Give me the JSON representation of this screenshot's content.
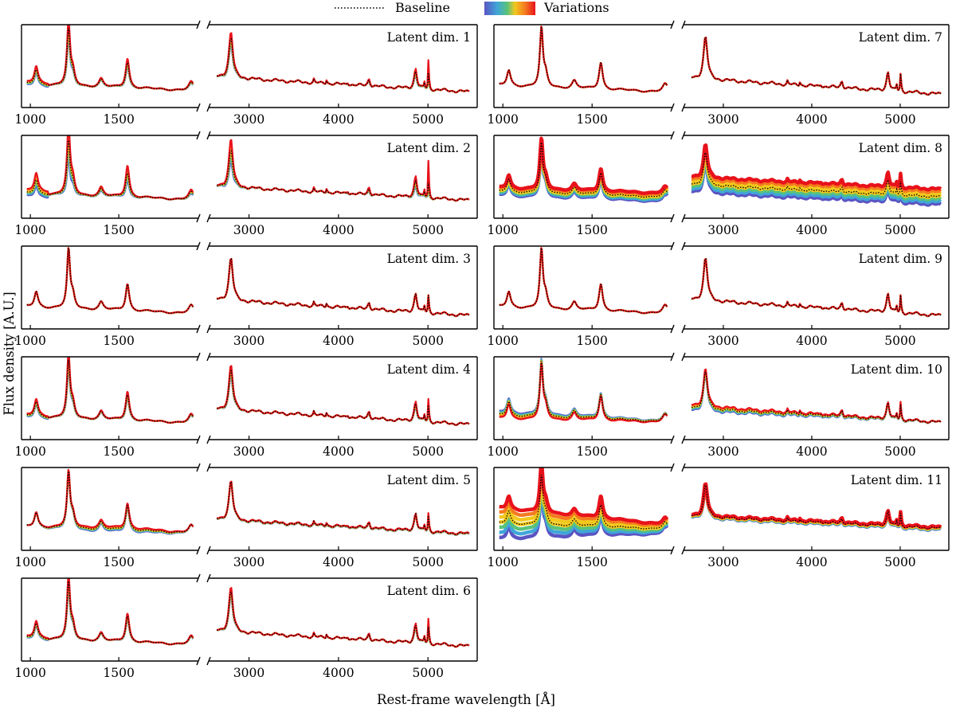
{
  "chart_data": {
    "type": "line",
    "xlabel": "Rest-frame wavelength [Å]",
    "ylabel": "Flux density [A.U.]",
    "legend": {
      "placement": "top-center",
      "entries": [
        {
          "label": "Baseline",
          "style": "dotted-black"
        },
        {
          "label": "Variations",
          "style": "rainbow-band"
        }
      ]
    },
    "colors": {
      "baseline": "#000000",
      "variation_low": "#5b54c2",
      "variation_mid": "#f2c81d",
      "variation_high": "#e8121b",
      "axes": "#000000"
    },
    "broken_x_axis": true,
    "uv_axis": {
      "xlim": [
        950,
        1950
      ],
      "ticks": [
        1000,
        1500
      ]
    },
    "optical_axis": {
      "xlim": [
        2550,
        5550
      ],
      "ticks": [
        3000,
        4000,
        5000
      ]
    },
    "emission_lines": [
      {
        "center": 1033,
        "width": 12,
        "height": 0.45
      },
      {
        "center": 1216,
        "width": 10,
        "height": 1.7
      },
      {
        "center": 1240,
        "width": 12,
        "height": 0.35
      },
      {
        "center": 1400,
        "width": 14,
        "height": 0.22
      },
      {
        "center": 1549,
        "width": 12,
        "height": 0.8
      },
      {
        "center": 1909,
        "width": 16,
        "height": 0.22
      },
      {
        "center": 2798,
        "width": 25,
        "height": 0.85
      },
      {
        "center": 3727,
        "width": 5,
        "height": 0.08
      },
      {
        "center": 3869,
        "width": 6,
        "height": 0.1
      },
      {
        "center": 4102,
        "width": 12,
        "height": 0.05
      },
      {
        "center": 4340,
        "width": 14,
        "height": 0.14
      },
      {
        "center": 4861,
        "width": 18,
        "height": 0.38
      },
      {
        "center": 4959,
        "width": 5,
        "height": 0.14
      },
      {
        "center": 5007,
        "width": 5,
        "height": 0.42
      }
    ],
    "panels": [
      {
        "label": "Latent dim. 1",
        "variation": 0.15,
        "mode": "lines-moderate",
        "oiii_boost": 0.5
      },
      {
        "label": "Latent dim. 2",
        "variation": 0.3,
        "mode": "lines-strong",
        "oiii_boost": 0.9
      },
      {
        "label": "Latent dim. 3",
        "variation": 0.02,
        "mode": "none",
        "oiii_boost": 0
      },
      {
        "label": "Latent dim. 4",
        "variation": 0.12,
        "mode": "lines-moderate",
        "oiii_boost": 0.2
      },
      {
        "label": "Latent dim. 5",
        "variation": 0.18,
        "mode": "uv-slope",
        "oiii_boost": 0.1
      },
      {
        "label": "Latent dim. 6",
        "variation": 0.1,
        "mode": "lines-moderate",
        "oiii_boost": 0.3
      },
      {
        "label": "Latent dim. 7",
        "variation": 0.02,
        "mode": "none",
        "oiii_boost": 0
      },
      {
        "label": "Latent dim. 8",
        "variation": 0.55,
        "mode": "continuum-level",
        "oiii_boost": 0
      },
      {
        "label": "Latent dim. 9",
        "variation": 0.02,
        "mode": "none",
        "oiii_boost": 0
      },
      {
        "label": "Latent dim. 10",
        "variation": 0.25,
        "mode": "slope",
        "oiii_boost": 0.1
      },
      {
        "label": "Latent dim. 11",
        "variation": 0.6,
        "mode": "uv-level",
        "oiii_boost": 0
      }
    ]
  }
}
